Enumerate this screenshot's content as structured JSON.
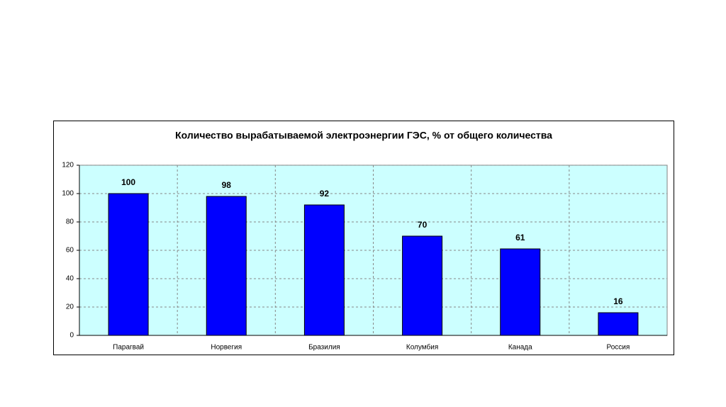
{
  "chart_data": {
    "type": "bar",
    "title": "Количество вырабатываемой электроэнергии ГЭС, % от общего количества",
    "categories": [
      "Парагвай",
      "Норвегия",
      "Бразилия",
      "Колумбия",
      "Канада",
      "Россия"
    ],
    "values": [
      100,
      98,
      92,
      70,
      61,
      16
    ],
    "color": "#0000ff",
    "ylim": [
      0,
      120
    ],
    "yticks": [
      0,
      20,
      40,
      60,
      80,
      100,
      120
    ],
    "grid": true
  }
}
